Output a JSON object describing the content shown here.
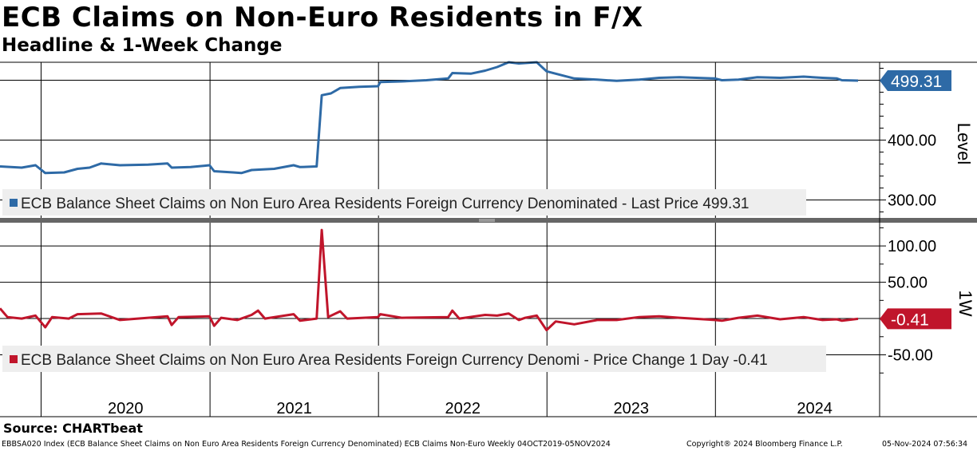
{
  "header": {
    "title": "ECB Claims on Non-Euro Residents in F/X",
    "subtitle": "Headline & 1-Week Change"
  },
  "footer": {
    "source": "Source: CHARTbeat",
    "description": "EBBSA020 Index (ECB Balance Sheet Claims on Non Euro Area Residents Foreign Currency Denominated) ECB Claims Non-Euro  Weekly 04OCT2019-05NOV2024",
    "copyright": "Copyright® 2024 Bloomberg Finance L.P.",
    "timestamp": "05-Nov-2024 07:56:34"
  },
  "colors": {
    "level": "#2e6aa6",
    "change": "#c0152b"
  },
  "chart_data": [
    {
      "type": "line",
      "panel": "top",
      "axis_title": "Level",
      "y_ticks": [
        "400.00",
        "300.00"
      ],
      "ylim": [
        270,
        530
      ],
      "last_value_label": "499.31",
      "legend": "ECB Balance Sheet Claims on Non Euro Area Residents Foreign Currency Denominated - Last Price 499.31",
      "x_ticks": [
        "2020",
        "2021",
        "2022",
        "2023",
        "2024"
      ],
      "series": [
        {
          "name": "ECB Balance Sheet Claims on Non Euro Area Residents Foreign Currency Denominated",
          "points": [
            [
              "2019-10-04",
              356
            ],
            [
              "2019-11-20",
              354
            ],
            [
              "2019-12-20",
              358
            ],
            [
              "2020-01-10",
              345
            ],
            [
              "2020-02-20",
              346
            ],
            [
              "2020-03-20",
              352
            ],
            [
              "2020-04-15",
              354
            ],
            [
              "2020-05-10",
              361
            ],
            [
              "2020-06-20",
              358
            ],
            [
              "2020-08-20",
              359
            ],
            [
              "2020-10-01",
              361
            ],
            [
              "2020-10-10",
              354
            ],
            [
              "2020-11-20",
              355
            ],
            [
              "2020-12-31",
              358
            ],
            [
              "2021-01-10",
              348
            ],
            [
              "2021-02-20",
              346
            ],
            [
              "2021-03-10",
              345
            ],
            [
              "2021-04-01",
              350
            ],
            [
              "2021-05-20",
              352
            ],
            [
              "2021-07-01",
              358
            ],
            [
              "2021-07-15",
              355
            ],
            [
              "2021-08-20",
              356
            ],
            [
              "2021-08-31",
              475
            ],
            [
              "2021-09-20",
              478
            ],
            [
              "2021-10-10",
              487
            ],
            [
              "2021-11-20",
              489
            ],
            [
              "2021-12-31",
              490
            ],
            [
              "2022-01-05",
              497
            ],
            [
              "2022-02-20",
              498
            ],
            [
              "2022-04-15",
              500
            ],
            [
              "2022-06-01",
              503
            ],
            [
              "2022-06-10",
              512
            ],
            [
              "2022-07-20",
              511
            ],
            [
              "2022-08-20",
              516
            ],
            [
              "2022-09-15",
              522
            ],
            [
              "2022-10-10",
              530
            ],
            [
              "2022-11-01",
              528
            ],
            [
              "2022-12-10",
              530
            ],
            [
              "2022-12-31",
              515
            ],
            [
              "2023-01-20",
              511
            ],
            [
              "2023-03-01",
              503
            ],
            [
              "2023-04-20",
              501
            ],
            [
              "2023-06-01",
              499
            ],
            [
              "2023-07-20",
              501
            ],
            [
              "2023-09-01",
              504
            ],
            [
              "2023-10-15",
              505
            ],
            [
              "2023-12-31",
              503
            ],
            [
              "2024-01-15",
              500
            ],
            [
              "2024-02-20",
              501
            ],
            [
              "2024-04-01",
              505
            ],
            [
              "2024-05-20",
              504
            ],
            [
              "2024-07-10",
              506
            ],
            [
              "2024-08-20",
              504
            ],
            [
              "2024-09-20",
              503
            ],
            [
              "2024-10-01",
              500
            ],
            [
              "2024-11-05",
              499.31
            ]
          ]
        }
      ]
    },
    {
      "type": "line",
      "panel": "bottom",
      "axis_title": "1W",
      "y_ticks": [
        "100.00",
        "50.00",
        "-50.00"
      ],
      "ylim": [
        -78,
        132
      ],
      "last_value_label": "-0.41",
      "legend": "ECB Balance Sheet Claims on Non Euro Area Residents Foreign Currency Denomi - Price Change 1 Day -0.41",
      "x_ticks": [
        "2020",
        "2021",
        "2022",
        "2023",
        "2024"
      ],
      "series": [
        {
          "name": "ECB Balance Sheet Claims on Non Euro Area Residents Foreign Currency Denomi - Price Change 1 Day",
          "points": [
            [
              "2019-10-04",
              14
            ],
            [
              "2019-10-20",
              2
            ],
            [
              "2019-11-20",
              0
            ],
            [
              "2019-12-20",
              4
            ],
            [
              "2020-01-10",
              -12
            ],
            [
              "2020-01-25",
              2
            ],
            [
              "2020-03-01",
              0
            ],
            [
              "2020-03-20",
              6
            ],
            [
              "2020-05-10",
              7
            ],
            [
              "2020-06-20",
              -2
            ],
            [
              "2020-08-20",
              1
            ],
            [
              "2020-10-01",
              3
            ],
            [
              "2020-10-10",
              -9
            ],
            [
              "2020-10-25",
              2
            ],
            [
              "2020-12-31",
              3
            ],
            [
              "2021-01-10",
              -10
            ],
            [
              "2021-01-25",
              1
            ],
            [
              "2021-03-01",
              -2
            ],
            [
              "2021-04-01",
              5
            ],
            [
              "2021-04-15",
              11
            ],
            [
              "2021-04-30",
              0
            ],
            [
              "2021-07-01",
              6
            ],
            [
              "2021-07-15",
              -3
            ],
            [
              "2021-08-20",
              0
            ],
            [
              "2021-08-31",
              122
            ],
            [
              "2021-09-14",
              2
            ],
            [
              "2021-10-10",
              10
            ],
            [
              "2021-10-25",
              0
            ],
            [
              "2021-12-31",
              2
            ],
            [
              "2022-01-05",
              6
            ],
            [
              "2022-02-20",
              1
            ],
            [
              "2022-06-01",
              2
            ],
            [
              "2022-06-10",
              11
            ],
            [
              "2022-06-25",
              0
            ],
            [
              "2022-08-20",
              5
            ],
            [
              "2022-09-15",
              4
            ],
            [
              "2022-10-10",
              7
            ],
            [
              "2022-11-01",
              -2
            ],
            [
              "2022-11-15",
              1
            ],
            [
              "2022-12-10",
              4
            ],
            [
              "2022-12-31",
              -16
            ],
            [
              "2023-01-20",
              -4
            ],
            [
              "2023-03-01",
              -8
            ],
            [
              "2023-04-20",
              -2
            ],
            [
              "2023-06-01",
              -2
            ],
            [
              "2023-07-20",
              2
            ],
            [
              "2023-09-01",
              3
            ],
            [
              "2023-10-15",
              1
            ],
            [
              "2023-12-31",
              -2
            ],
            [
              "2024-01-15",
              -3
            ],
            [
              "2024-02-20",
              1
            ],
            [
              "2024-04-01",
              4
            ],
            [
              "2024-05-20",
              -1
            ],
            [
              "2024-07-10",
              2
            ],
            [
              "2024-08-20",
              -2
            ],
            [
              "2024-09-20",
              -1
            ],
            [
              "2024-10-01",
              -3
            ],
            [
              "2024-11-05",
              -0.41
            ]
          ]
        }
      ]
    }
  ]
}
